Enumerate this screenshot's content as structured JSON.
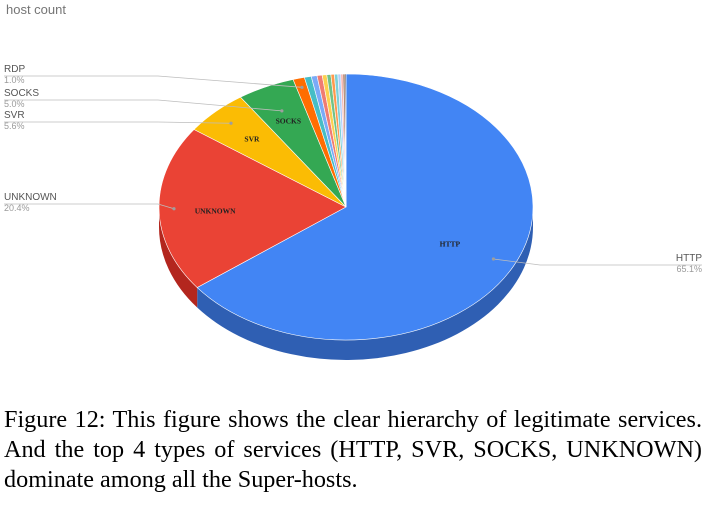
{
  "chart_data": {
    "type": "pie",
    "title": "host count",
    "style": "3d",
    "slices": [
      {
        "label": "HTTP",
        "value": 65.1,
        "display": "65.1%",
        "color": "#4285f4",
        "side": "#2f5fb3",
        "inner_label": "HTTP"
      },
      {
        "label": "UNKNOWN",
        "value": 20.4,
        "display": "20.4%",
        "color": "#ea4335",
        "side": "#b3261e",
        "inner_label": "UNKNOWN"
      },
      {
        "label": "SVR",
        "value": 5.6,
        "display": "5.6%",
        "color": "#fbbc04",
        "side": "#c99400",
        "inner_label": "SVR"
      },
      {
        "label": "SOCKS",
        "value": 5.0,
        "display": "5.0%",
        "color": "#34a853",
        "side": "#24793a",
        "inner_label": "SOCKS"
      },
      {
        "label": "RDP",
        "value": 1.0,
        "display": "1.0%",
        "color": "#ff6d01",
        "side": "#c45200"
      },
      {
        "label": "",
        "value": 0.6,
        "color": "#46bdc6"
      },
      {
        "label": "",
        "value": 0.5,
        "color": "#7baaf7"
      },
      {
        "label": "",
        "value": 0.45,
        "color": "#f07b72"
      },
      {
        "label": "",
        "value": 0.4,
        "color": "#fcd04f"
      },
      {
        "label": "",
        "value": 0.35,
        "color": "#71c287"
      },
      {
        "label": "",
        "value": 0.3,
        "color": "#ff994d"
      },
      {
        "label": "",
        "value": 0.3,
        "color": "#7ed1d7"
      },
      {
        "label": "",
        "value": 0.25,
        "color": "#b3cefb"
      },
      {
        "label": "",
        "value": 0.2,
        "color": "#f7b4ae"
      },
      {
        "label": "",
        "value": 0.15,
        "color": "#8a4a2b"
      },
      {
        "label": "",
        "value": 0.1,
        "color": "#444444"
      }
    ],
    "legend": "callouts"
  },
  "caption": "Figure 12: This figure shows the clear hierarchy of legitimate services. And the top 4 types of services (HTTP, SVR, SOCKS, UNKNOWN) dominate among all the Super-hosts."
}
